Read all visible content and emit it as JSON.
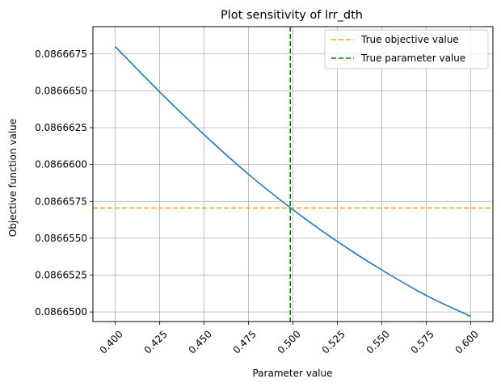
{
  "chart_data": {
    "type": "line",
    "title": "Plot sensitivity of lrr_dth",
    "xlabel": "Parameter value",
    "ylabel": "Objective function value",
    "xlim": [
      0.3875,
      0.6125
    ],
    "ylim": [
      0.08664935,
      0.08666935
    ],
    "xticks": [
      0.4,
      0.425,
      0.45,
      0.475,
      0.5,
      0.525,
      0.55,
      0.575,
      0.6
    ],
    "xtick_labels": [
      "0.400",
      "0.425",
      "0.450",
      "0.475",
      "0.500",
      "0.525",
      "0.550",
      "0.575",
      "0.600"
    ],
    "yticks": [
      0.08665,
      0.0866525,
      0.086655,
      0.0866575,
      0.08666,
      0.0866625,
      0.086665,
      0.0866675
    ],
    "ytick_labels": [
      "0.0866500",
      "0.0866525",
      "0.0866550",
      "0.0866575",
      "0.0866600",
      "0.0866625",
      "0.0866650",
      "0.0866675"
    ],
    "grid": true,
    "legend_position": "top-right",
    "series": [
      {
        "color": "#1f77b4",
        "x": [
          0.4,
          0.425,
          0.45,
          0.475,
          0.5,
          0.525,
          0.55,
          0.575,
          0.6
        ],
        "y": [
          0.086668,
          0.08666493,
          0.08666203,
          0.08665934,
          0.08665694,
          0.08665478,
          0.08665285,
          0.08665112,
          0.0866497
        ]
      }
    ],
    "reference_lines": [
      {
        "name": "True objective value",
        "orientation": "horizontal",
        "value": 0.08665705,
        "color": "#ffa500",
        "style": "dashed"
      },
      {
        "name": "True parameter value",
        "orientation": "vertical",
        "value": 0.4985,
        "color": "#008000",
        "style": "dashed"
      }
    ]
  }
}
